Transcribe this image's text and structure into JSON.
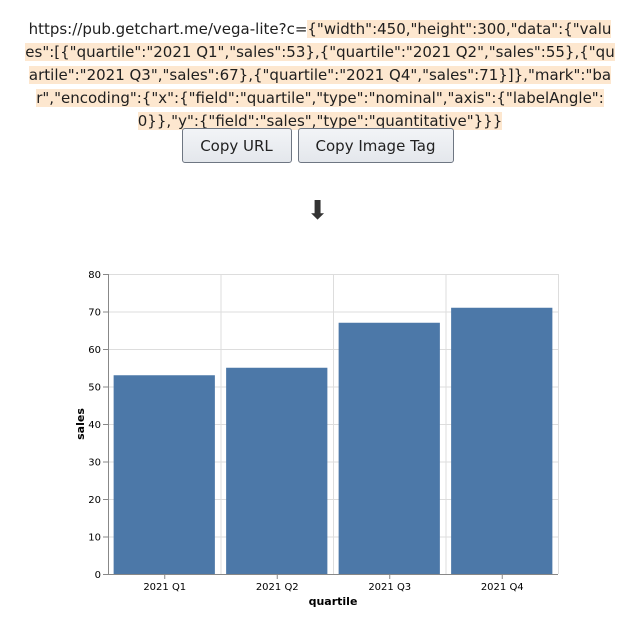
{
  "url": {
    "prefix": "https://pub.getchart.me/vega-lite?c=",
    "param": "{\"width\":450,\"height\":300,\"data\":{\"values\":[{\"quartile\":\"2021 Q1\",\"sales\":53},{\"quartile\":\"2021 Q2\",\"sales\":55},{\"quartile\":\"2021 Q3\",\"sales\":67},{\"quartile\":\"2021 Q4\",\"sales\":71}]},\"mark\":\"bar\",\"encoding\":{\"x\":{\"field\":\"quartile\",\"type\":\"nominal\",\"axis\":{\"labelAngle\":0}},\"y\":{\"field\":\"sales\",\"type\":\"quantitative\"}}}"
  },
  "buttons": {
    "copy_url": "Copy URL",
    "copy_image_tag": "Copy Image Tag"
  },
  "arrow": "⬇",
  "colors": {
    "bar": "#4c78a8",
    "grid": "#dddddd",
    "url_highlight": "#fde7cf"
  },
  "chart_data": {
    "type": "bar",
    "categories": [
      "2021 Q1",
      "2021 Q2",
      "2021 Q3",
      "2021 Q4"
    ],
    "values": [
      53,
      55,
      67,
      71
    ],
    "xlabel": "quartile",
    "ylabel": "sales",
    "ylim": [
      0,
      80
    ],
    "yticks": [
      0,
      10,
      20,
      30,
      40,
      50,
      60,
      70,
      80
    ],
    "grid": true
  }
}
